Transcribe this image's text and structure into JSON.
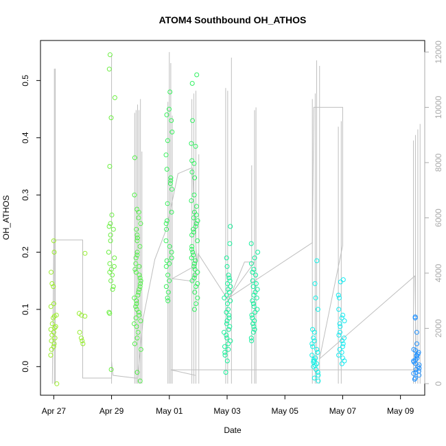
{
  "chart_data": {
    "type": "scatter",
    "title": "ATOM4 Southbound OH_ATHOS",
    "xlabel": "Date",
    "ylabel": "OH_ATHOS",
    "x_tick_labels": [
      "Apr 27",
      "Apr 29",
      "May 01",
      "May 03",
      "May 05",
      "May 07",
      "May 09"
    ],
    "x_ticks_day": [
      0,
      2,
      4,
      6,
      8,
      10,
      12
    ],
    "xlim_day": [
      -0.46,
      12.84
    ],
    "ylim_left": [
      -0.05,
      0.57
    ],
    "y_ticks_left": [
      "0.0",
      "0.1",
      "0.2",
      "0.3",
      "0.4",
      "0.5"
    ],
    "y_ticks_left_values": [
      0.0,
      0.1,
      0.2,
      0.3,
      0.4,
      0.5
    ],
    "ylim_right": [
      -420,
      12420
    ],
    "y_ticks_right": [
      "0",
      "2000",
      "4000",
      "6000",
      "8000",
      "10000",
      "12000"
    ],
    "y_ticks_right_values": [
      0,
      2000,
      4000,
      6000,
      8000,
      10000,
      12000
    ],
    "right_axis_color": "#aaaaaa",
    "altitude_line_color": "#bebebe",
    "grid": false,
    "flights": [
      {
        "day": 0.0,
        "color": "#9aed2a",
        "values": [
          0.22,
          0.2,
          0.165,
          0.145,
          0.14,
          0.11,
          0.105,
          0.09,
          0.088,
          0.085,
          0.075,
          0.07,
          0.068,
          0.065,
          0.06,
          0.055,
          0.05,
          0.045,
          0.04,
          0.035,
          0.03,
          0.02,
          -0.03
        ]
      },
      {
        "day": 0.97,
        "color": "#95ed2d",
        "values": [
          0.198,
          0.093,
          0.09,
          0.088,
          0.06,
          0.05,
          0.045,
          0.04
        ]
      },
      {
        "day": 2.0,
        "color": "#6aef40",
        "values": [
          0.545,
          0.52,
          0.47,
          0.435,
          0.35,
          0.265,
          0.25,
          0.245,
          0.24,
          0.23,
          0.22,
          0.2,
          0.19,
          0.18,
          0.175,
          0.17,
          0.165,
          0.16,
          0.15,
          0.14,
          0.135,
          0.095,
          0.093,
          -0.005
        ]
      },
      {
        "day": 2.9,
        "color": "#55f04b",
        "values": [
          0.365,
          0.3,
          0.275,
          0.27,
          0.26,
          0.25,
          0.24,
          0.23,
          0.225,
          0.22,
          0.21,
          0.2,
          0.195,
          0.19,
          0.18,
          0.175,
          0.17,
          0.165,
          0.16,
          0.155,
          0.15,
          0.145,
          0.14,
          0.135,
          0.13,
          0.125,
          0.12,
          0.115,
          0.11,
          0.105,
          0.1,
          0.095,
          0.09,
          0.085,
          0.08,
          0.075,
          0.07,
          0.06,
          0.05,
          0.04,
          0.03,
          -0.01,
          -0.025
        ]
      },
      {
        "day": 4.0,
        "color": "#38f05c",
        "values": [
          0.48,
          0.45,
          0.44,
          0.43,
          0.41,
          0.395,
          0.37,
          0.345,
          0.33,
          0.325,
          0.32,
          0.31,
          0.285,
          0.27,
          0.255,
          0.25,
          0.24,
          0.22,
          0.21,
          0.2,
          0.19,
          0.185,
          0.18,
          0.175,
          0.16,
          0.15,
          0.14,
          0.13,
          0.12,
          0.115
        ]
      },
      {
        "day": 4.88,
        "color": "#30f060",
        "values": [
          0.51,
          0.495,
          0.43,
          0.39,
          0.385,
          0.36,
          0.355,
          0.34,
          0.33,
          0.3,
          0.29,
          0.28,
          0.27,
          0.265,
          0.26,
          0.255,
          0.25,
          0.245,
          0.24,
          0.235,
          0.23,
          0.22,
          0.21,
          0.205,
          0.2,
          0.195,
          0.19,
          0.185,
          0.18,
          0.175,
          0.17,
          0.165,
          0.16,
          0.155,
          0.15,
          0.145,
          0.14,
          0.13,
          0.12,
          0.11,
          0.1
        ]
      },
      {
        "day": 6.0,
        "color": "#18ef9a",
        "values": [
          0.245,
          0.215,
          0.19,
          0.175,
          0.16,
          0.155,
          0.15,
          0.145,
          0.14,
          0.135,
          0.13,
          0.125,
          0.12,
          0.115,
          0.11,
          0.1,
          0.095,
          0.09,
          0.085,
          0.08,
          0.075,
          0.07,
          0.065,
          0.06,
          0.055,
          0.05,
          0.045,
          0.04,
          0.035,
          0.03,
          0.025,
          0.02,
          0.01,
          -0.01
        ]
      },
      {
        "day": 6.95,
        "color": "#14ef9e",
        "values": [
          0.215,
          0.2,
          0.19,
          0.18,
          0.17,
          0.165,
          0.16,
          0.15,
          0.145,
          0.14,
          0.135,
          0.13,
          0.125,
          0.12,
          0.115,
          0.11,
          0.105,
          0.1,
          0.095,
          0.09,
          0.085,
          0.08,
          0.075,
          0.07,
          0.065,
          0.06,
          0.05,
          0.045
        ]
      },
      {
        "day": 9.05,
        "color": "#0ff0e6",
        "values": [
          0.185,
          0.145,
          0.12,
          0.1,
          0.065,
          0.06,
          0.05,
          0.045,
          0.04,
          0.035,
          0.03,
          0.025,
          0.02,
          0.015,
          0.012,
          0.01,
          0.008,
          0.005,
          0.002,
          0.0,
          -0.005,
          -0.01,
          -0.015,
          -0.02,
          -0.025
        ]
      },
      {
        "day": 9.95,
        "color": "#12eaf0",
        "values": [
          0.152,
          0.148,
          0.125,
          0.12,
          0.1,
          0.09,
          0.085,
          0.08,
          0.075,
          0.07,
          0.06,
          0.055,
          0.05,
          0.045,
          0.04,
          0.035,
          0.03,
          0.025,
          0.02,
          0.015,
          0.01,
          0.005
        ]
      },
      {
        "day": 12.55,
        "color": "#1e90ff",
        "values": [
          0.087,
          0.085,
          0.06,
          0.04,
          0.03,
          0.028,
          0.025,
          0.022,
          0.02,
          0.018,
          0.015,
          0.012,
          0.01,
          0.008,
          0.005,
          0.003,
          0.0,
          -0.003,
          -0.005,
          -0.008,
          -0.01,
          -0.012,
          -0.015,
          -0.02,
          -0.022
        ]
      }
    ],
    "altitude_spikes": [
      {
        "day": 0.02,
        "max": 11400
      },
      {
        "day": 0.05,
        "max": 11400
      },
      {
        "day": 2.0,
        "max": 11900
      },
      {
        "day": 2.8,
        "max": 9800
      },
      {
        "day": 2.85,
        "max": 9900
      },
      {
        "day": 2.9,
        "max": 10100
      },
      {
        "day": 2.95,
        "max": 9900
      },
      {
        "day": 3.0,
        "max": 10300
      },
      {
        "day": 3.05,
        "max": 8400
      },
      {
        "day": 3.95,
        "max": 10200
      },
      {
        "day": 4.0,
        "max": 12000
      },
      {
        "day": 4.05,
        "max": 11600
      },
      {
        "day": 4.1,
        "max": 9700
      },
      {
        "day": 4.78,
        "max": 10300
      },
      {
        "day": 4.85,
        "max": 10500
      },
      {
        "day": 4.92,
        "max": 10600
      },
      {
        "day": 5.02,
        "max": 8300
      },
      {
        "day": 5.95,
        "max": 10700
      },
      {
        "day": 6.02,
        "max": 10600
      },
      {
        "day": 6.15,
        "max": 11800
      },
      {
        "day": 6.85,
        "max": 7900
      },
      {
        "day": 6.95,
        "max": 9900
      },
      {
        "day": 7.0,
        "max": 10000
      },
      {
        "day": 8.95,
        "max": 10300
      },
      {
        "day": 9.05,
        "max": 10500
      },
      {
        "day": 9.1,
        "max": 11700
      },
      {
        "day": 9.2,
        "max": 11500
      },
      {
        "day": 9.85,
        "max": 9300
      },
      {
        "day": 9.95,
        "max": 9500
      },
      {
        "day": 12.45,
        "max": 8800
      },
      {
        "day": 12.52,
        "max": 9000
      },
      {
        "day": 12.6,
        "max": 9200
      },
      {
        "day": 12.68,
        "max": 9400
      }
    ],
    "altitude_path": [
      [
        -0.05,
        0
      ],
      [
        0.0,
        5200
      ],
      [
        1.0,
        5200
      ],
      [
        1.0,
        200
      ],
      [
        2.0,
        200
      ],
      [
        2.0,
        800
      ],
      [
        2.05,
        300
      ],
      [
        2.82,
        200
      ],
      [
        2.9,
        200
      ],
      [
        3.1,
        2400
      ],
      [
        3.5,
        4500
      ],
      [
        3.9,
        5600
      ],
      [
        4.3,
        7600
      ],
      [
        4.75,
        7800
      ],
      [
        4.8,
        7800
      ],
      [
        4.95,
        4300
      ],
      [
        4.1,
        3800
      ],
      [
        4.85,
        3700
      ],
      [
        5.0,
        4700
      ],
      [
        6.05,
        3000
      ],
      [
        6.6,
        4400
      ],
      [
        6.95,
        4400
      ],
      [
        6.05,
        3100
      ],
      [
        8.95,
        5100
      ],
      [
        9.0,
        10000
      ],
      [
        10.0,
        10000
      ],
      [
        10.0,
        5000
      ],
      [
        9.2,
        900
      ],
      [
        12.5,
        3900
      ],
      [
        12.55,
        500
      ],
      [
        4.05,
        500
      ],
      [
        4.9,
        300
      ]
    ]
  }
}
